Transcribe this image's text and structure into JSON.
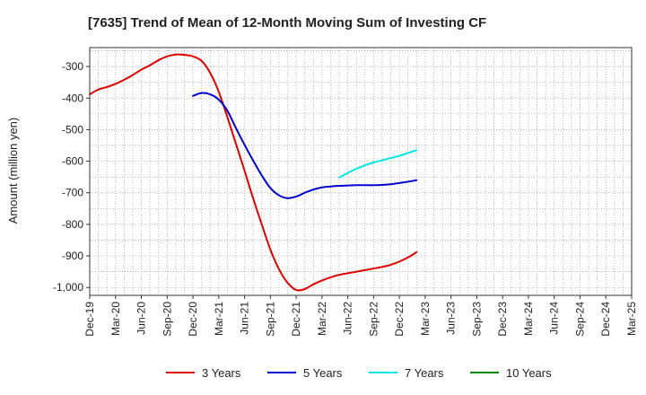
{
  "chart_data": {
    "type": "line",
    "title": "[7635]  Trend of Mean of 12-Month Moving Sum of Investing CF",
    "xlabel": "",
    "ylabel": "Amount (million yen)",
    "ylim": [
      -1025,
      -240
    ],
    "yticks": [
      -300,
      -400,
      -500,
      -600,
      -700,
      -800,
      -900,
      -1000
    ],
    "ytick_labels": [
      "-300",
      "-400",
      "-500",
      "-600",
      "-700",
      "-800",
      "-900",
      "-1,000"
    ],
    "x_categories": [
      "Dec-19",
      "Mar-20",
      "Jun-20",
      "Sep-20",
      "Dec-20",
      "Mar-21",
      "Jun-21",
      "Sep-21",
      "Dec-21",
      "Mar-22",
      "Jun-22",
      "Sep-22",
      "Dec-22",
      "Mar-23",
      "Jun-23",
      "Sep-23",
      "Dec-23",
      "Mar-24",
      "Jun-24",
      "Sep-24",
      "Dec-24",
      "Mar-25"
    ],
    "grid": true,
    "legend_position": "bottom",
    "series": [
      {
        "name": "3 Years",
        "color": "#dd0000",
        "points": [
          [
            0,
            -388
          ],
          [
            1,
            -373
          ],
          [
            2,
            -365
          ],
          [
            3,
            -355
          ],
          [
            4,
            -342
          ],
          [
            5,
            -327
          ],
          [
            6,
            -310
          ],
          [
            7,
            -296
          ],
          [
            8,
            -280
          ],
          [
            9,
            -268
          ],
          [
            10,
            -262
          ],
          [
            11,
            -263
          ],
          [
            12,
            -268
          ],
          [
            13,
            -282
          ],
          [
            14,
            -320
          ],
          [
            15,
            -380
          ],
          [
            16,
            -460
          ],
          [
            17,
            -545
          ],
          [
            18,
            -630
          ],
          [
            19,
            -718
          ],
          [
            20,
            -800
          ],
          [
            21,
            -880
          ],
          [
            22,
            -942
          ],
          [
            23,
            -985
          ],
          [
            24,
            -1008
          ],
          [
            25,
            -1005
          ],
          [
            26,
            -990
          ],
          [
            27,
            -978
          ],
          [
            28,
            -968
          ],
          [
            29,
            -960
          ],
          [
            30,
            -955
          ],
          [
            31,
            -950
          ],
          [
            32,
            -945
          ],
          [
            33,
            -940
          ],
          [
            34,
            -935
          ],
          [
            35,
            -928
          ],
          [
            36,
            -918
          ],
          [
            37,
            -905
          ],
          [
            38,
            -888
          ]
        ]
      },
      {
        "name": "5 Years",
        "color": "#0000cc",
        "points": [
          [
            12,
            -393
          ],
          [
            13,
            -384
          ],
          [
            14,
            -388
          ],
          [
            15,
            -405
          ],
          [
            16,
            -440
          ],
          [
            17,
            -495
          ],
          [
            18,
            -548
          ],
          [
            19,
            -598
          ],
          [
            20,
            -645
          ],
          [
            21,
            -685
          ],
          [
            22,
            -708
          ],
          [
            23,
            -717
          ],
          [
            24,
            -712
          ],
          [
            25,
            -700
          ],
          [
            26,
            -690
          ],
          [
            27,
            -683
          ],
          [
            28,
            -680
          ],
          [
            29,
            -678
          ],
          [
            30,
            -677
          ],
          [
            31,
            -676
          ],
          [
            32,
            -676
          ],
          [
            33,
            -676
          ],
          [
            34,
            -675
          ],
          [
            35,
            -673
          ],
          [
            36,
            -669
          ],
          [
            37,
            -665
          ],
          [
            38,
            -660
          ]
        ]
      },
      {
        "name": "7 Years",
        "color": "#00e5e5",
        "points": [
          [
            29,
            -652
          ],
          [
            30,
            -637
          ],
          [
            31,
            -624
          ],
          [
            32,
            -613
          ],
          [
            33,
            -604
          ],
          [
            34,
            -597
          ],
          [
            35,
            -590
          ],
          [
            36,
            -583
          ],
          [
            37,
            -574
          ],
          [
            38,
            -565
          ]
        ]
      },
      {
        "name": "10 Years",
        "color": "#008800",
        "points": []
      }
    ]
  }
}
